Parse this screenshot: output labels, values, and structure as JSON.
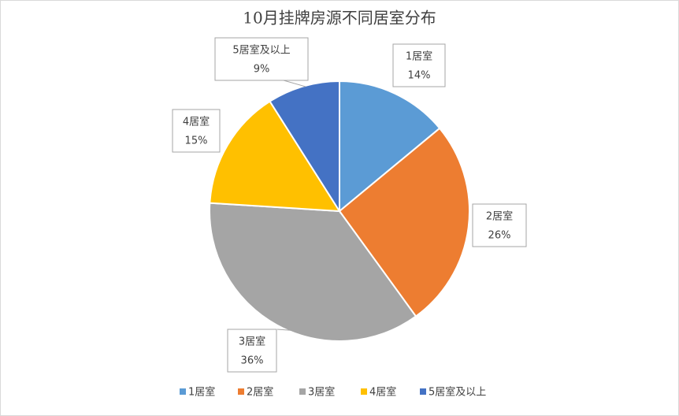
{
  "chart_data": {
    "type": "pie",
    "title": "10月挂牌房源不同居室分布",
    "categories": [
      "1居室",
      "2居室",
      "3居室",
      "4居室",
      "5居室及以上"
    ],
    "values": [
      14,
      26,
      36,
      15,
      9
    ],
    "value_labels": [
      "14%",
      "26%",
      "36%",
      "15%",
      "9%"
    ],
    "colors": [
      "#5b9bd5",
      "#ed7d31",
      "#a5a5a5",
      "#ffc000",
      "#4472c4"
    ],
    "legend": "bottom"
  }
}
